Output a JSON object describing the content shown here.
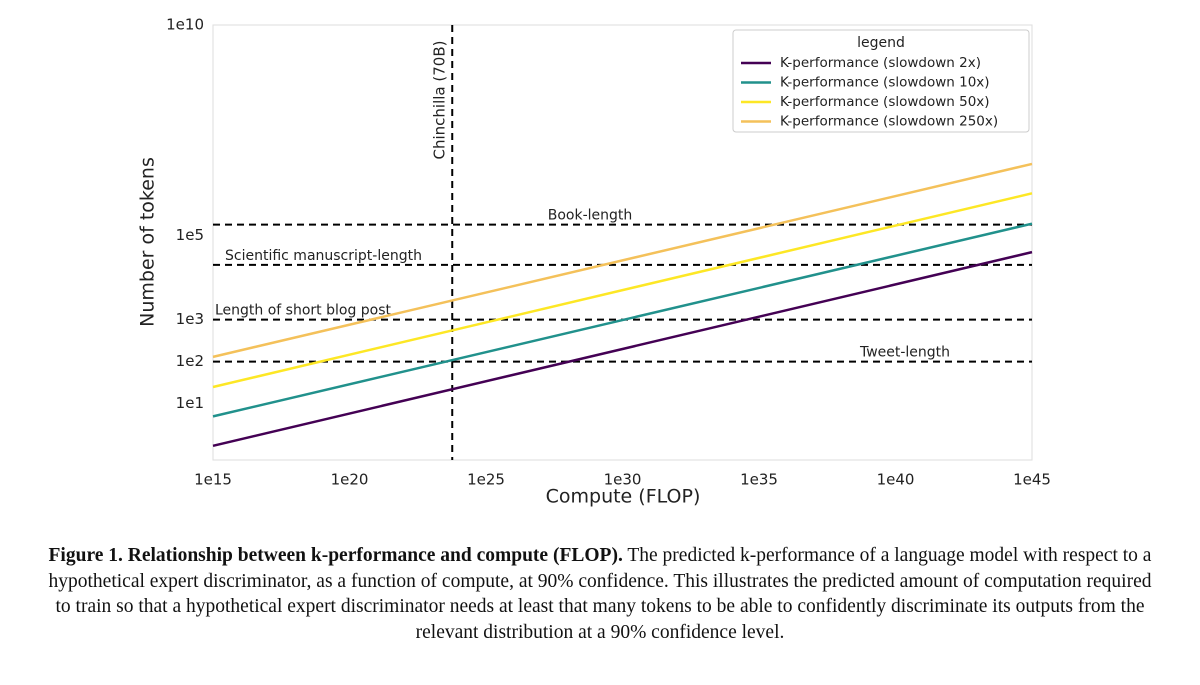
{
  "chart_data": {
    "type": "line",
    "x_log": true,
    "y_log": true,
    "xlabel": "Compute (FLOP)",
    "ylabel": "Number of tokens",
    "xlim": [
      1000000000000000.0,
      1e+45
    ],
    "ylim": [
      0.46,
      10000000000.0
    ],
    "xticks": [
      {
        "value": 1000000000000000.0,
        "label": "1e15"
      },
      {
        "value": 1e+20,
        "label": "1e20"
      },
      {
        "value": 1e+25,
        "label": "1e25"
      },
      {
        "value": 1e+30,
        "label": "1e30"
      },
      {
        "value": 1e+35,
        "label": "1e35"
      },
      {
        "value": 1e+40,
        "label": "1e40"
      },
      {
        "value": 1e+45,
        "label": "1e45"
      }
    ],
    "yticks": [
      {
        "value": 10,
        "label": "1e1"
      },
      {
        "value": 100,
        "label": "1e2"
      },
      {
        "value": 1000,
        "label": "1e3"
      },
      {
        "value": 100000,
        "label": "1e5"
      },
      {
        "value": 10000000000.0,
        "label": "1e10"
      }
    ],
    "x": [
      1000000000000000.0,
      1e+45
    ],
    "series": [
      {
        "name": "K-performance (slowdown 2x)",
        "color": "#440154",
        "values": [
          1,
          40000
        ]
      },
      {
        "name": "K-performance (slowdown 10x)",
        "color": "#21918c",
        "values": [
          5,
          190000
        ]
      },
      {
        "name": "K-performance (slowdown 50x)",
        "color": "#fde725",
        "values": [
          25,
          1000000
        ]
      },
      {
        "name": "K-performance (slowdown 250x)",
        "color": "#f4c15a",
        "values": [
          130,
          5000000
        ]
      }
    ],
    "legend_title": "legend",
    "legend": "upper right",
    "hlines": [
      {
        "label": "Book-length",
        "value": 180000
      },
      {
        "label": "Scientific manuscript-length",
        "value": 20000
      },
      {
        "label": "Length of short blog post",
        "value": 1000
      },
      {
        "label": "Tweet-length",
        "value": 100
      }
    ],
    "vlines": [
      {
        "label": "Chinchilla (70B)",
        "value": 5.8e+23
      }
    ]
  },
  "caption": {
    "title": "Figure 1. Relationship between k-performance and compute (FLOP).",
    "text": "The predicted k-performance of a language model with respect to a hypothetical expert discriminator, as a function of compute, at 90% confidence. This illustrates the predicted amount of computation required to train so that a hypothetical expert discriminator needs at least that many tokens to be able to confidently discriminate its outputs from the relevant distribution at a 90% confidence level."
  }
}
